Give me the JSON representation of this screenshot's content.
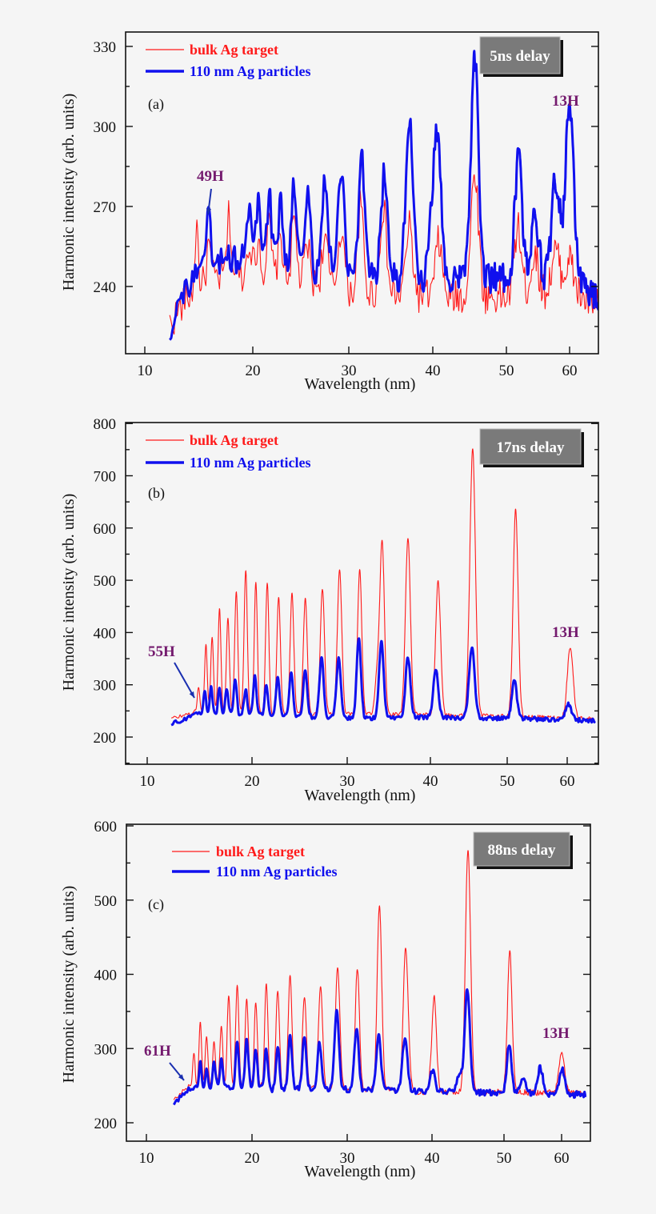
{
  "chart_data": [
    {
      "type": "line",
      "panel_label": "(a)",
      "delay_box": "5ns delay",
      "xlabel": "Wavelength (nm)",
      "ylabel": "Harmonic intensity (arb. units)",
      "xticks": [
        10,
        20,
        30,
        40,
        50,
        60
      ],
      "yticks": [
        240,
        270,
        300,
        330
      ],
      "xlim": [
        8,
        64.6
      ],
      "ylim": [
        215,
        335
      ],
      "x_scale": "nonlinear (spectrometer calibration)",
      "grid": false,
      "legend": "top-left",
      "annotations": [
        {
          "text": "49H",
          "arrow": true
        },
        {
          "text": "13H",
          "arrow": false
        }
      ],
      "series": [
        {
          "name": "bulk Ag target",
          "color": "#ff1a1a",
          "baseline": [
            [
              12.3,
              226
            ],
            [
              14,
              236
            ],
            [
              16,
              243
            ],
            [
              20,
              245
            ],
            [
              30,
              238
            ],
            [
              40,
              236
            ],
            [
              50,
              236
            ],
            [
              60,
              238
            ],
            [
              64.6,
              232
            ]
          ],
          "peaks": [
            [
              14.8,
              262
            ],
            [
              15.9,
              255
            ],
            [
              17.8,
              266
            ],
            [
              19.7,
              258
            ],
            [
              20.6,
              258
            ],
            [
              21.7,
              262
            ],
            [
              22.9,
              258
            ],
            [
              24.3,
              264
            ],
            [
              25.7,
              255
            ],
            [
              27.5,
              258
            ],
            [
              29.2,
              262
            ],
            [
              31.4,
              270
            ],
            [
              34.1,
              270
            ],
            [
              37.2,
              262
            ],
            [
              40.8,
              257
            ],
            [
              45.7,
              283
            ],
            [
              51.8,
              262
            ],
            [
              54.5,
              252
            ],
            [
              57.8,
              253
            ],
            [
              60.0,
              250
            ]
          ]
        },
        {
          "name": "110 nm Ag particles",
          "color": "#1010ee",
          "baseline": [
            [
              12.3,
              222
            ],
            [
              12.8,
              232
            ],
            [
              14,
              240
            ],
            [
              16,
              250
            ],
            [
              20,
              250
            ],
            [
              30,
              244
            ],
            [
              40,
              243
            ],
            [
              50,
              243
            ],
            [
              60,
              243
            ],
            [
              64.6,
              236
            ]
          ],
          "peaks": [
            [
              15.9,
              265
            ],
            [
              19.7,
              271
            ],
            [
              20.6,
              274
            ],
            [
              21.7,
              274
            ],
            [
              22.9,
              271
            ],
            [
              24.3,
              277
            ],
            [
              25.7,
              274
            ],
            [
              27.5,
              280
            ],
            [
              29.2,
              286
            ],
            [
              31.5,
              288
            ],
            [
              34.2,
              281
            ],
            [
              37.2,
              305
            ],
            [
              40.1,
              273
            ],
            [
              40.8,
              284
            ],
            [
              45.7,
              326
            ],
            [
              51.9,
              288
            ],
            [
              54.5,
              268
            ],
            [
              57.8,
              280
            ],
            [
              60.0,
              307
            ]
          ]
        }
      ]
    },
    {
      "type": "line",
      "panel_label": "(b)",
      "delay_box": "17ns delay",
      "xlabel": "Wavelength (nm)",
      "ylabel": "Harmonic intensity (arb. units)",
      "xticks": [
        10,
        20,
        30,
        40,
        50,
        60
      ],
      "yticks": [
        200,
        300,
        400,
        500,
        600,
        700,
        800
      ],
      "xlim": [
        8,
        64.6
      ],
      "ylim": [
        149,
        801
      ],
      "x_scale": "nonlinear (spectrometer calibration)",
      "grid": false,
      "legend": "top-left",
      "annotations": [
        {
          "text": "55H",
          "arrow": true
        },
        {
          "text": "13H",
          "arrow": false
        }
      ],
      "series": [
        {
          "name": "bulk Ag target",
          "color": "#ff1a1a",
          "baseline": [
            [
              12.3,
              235
            ],
            [
              15,
              250
            ],
            [
              20,
              245
            ],
            [
              40,
              242
            ],
            [
              64.6,
              235
            ]
          ],
          "peaks": [
            [
              14.9,
              294
            ],
            [
              15.6,
              377
            ],
            [
              16.2,
              391
            ],
            [
              16.9,
              445
            ],
            [
              17.7,
              428
            ],
            [
              18.5,
              480
            ],
            [
              19.4,
              515
            ],
            [
              20.4,
              493
            ],
            [
              21.6,
              495
            ],
            [
              22.8,
              471
            ],
            [
              24.2,
              474
            ],
            [
              25.6,
              469
            ],
            [
              27.4,
              486
            ],
            [
              29.2,
              521
            ],
            [
              31.5,
              521
            ],
            [
              33.6,
              320
            ],
            [
              34.2,
              572
            ],
            [
              37.3,
              578
            ],
            [
              41.0,
              498
            ],
            [
              45.5,
              750
            ],
            [
              51.4,
              636
            ],
            [
              60.5,
              372
            ]
          ]
        },
        {
          "name": "110 nm Ag particles",
          "color": "#1010ee",
          "baseline": [
            [
              12.3,
              225
            ],
            [
              15,
              245
            ],
            [
              18,
              243
            ],
            [
              30,
              236
            ],
            [
              40,
              238
            ],
            [
              64.6,
              232
            ]
          ],
          "peaks": [
            [
              15.5,
              291
            ],
            [
              16.1,
              299
            ],
            [
              16.9,
              294
            ],
            [
              17.6,
              292
            ],
            [
              18.4,
              308
            ],
            [
              19.4,
              288
            ],
            [
              20.3,
              318
            ],
            [
              21.5,
              297
            ],
            [
              22.7,
              317
            ],
            [
              24.1,
              323
            ],
            [
              25.6,
              328
            ],
            [
              27.3,
              352
            ],
            [
              29.1,
              350
            ],
            [
              31.4,
              392
            ],
            [
              34.1,
              382
            ],
            [
              37.3,
              351
            ],
            [
              40.7,
              328
            ],
            [
              45.4,
              369
            ],
            [
              51.2,
              307
            ],
            [
              60.2,
              263
            ]
          ]
        }
      ]
    },
    {
      "type": "line",
      "panel_label": "(c)",
      "delay_box": "88ns delay",
      "xlabel": "Wavelength (nm)",
      "ylabel": "Harmonic intensity (arb. units)",
      "xticks": [
        10,
        20,
        30,
        40,
        50,
        60
      ],
      "yticks": [
        200,
        300,
        400,
        500,
        600
      ],
      "xlim": [
        8,
        64.2
      ],
      "ylim": [
        175,
        602
      ],
      "x_scale": "nonlinear (spectrometer calibration)",
      "grid": false,
      "legend": "top-left",
      "annotations": [
        {
          "text": "61H",
          "arrow": true
        },
        {
          "text": "13H",
          "arrow": false
        }
      ],
      "series": [
        {
          "name": "bulk Ag target",
          "color": "#ff1a1a",
          "baseline": [
            [
              12.6,
              230
            ],
            [
              14,
              250
            ],
            [
              20,
              248
            ],
            [
              40,
              242
            ],
            [
              64.2,
              240
            ]
          ],
          "peaks": [
            [
              14.5,
              291
            ],
            [
              15.1,
              332
            ],
            [
              15.7,
              313
            ],
            [
              16.4,
              306
            ],
            [
              17.1,
              326
            ],
            [
              17.8,
              374
            ],
            [
              18.6,
              385
            ],
            [
              19.5,
              369
            ],
            [
              20.4,
              363
            ],
            [
              21.5,
              385
            ],
            [
              22.7,
              381
            ],
            [
              24.0,
              398
            ],
            [
              25.5,
              370
            ],
            [
              27.2,
              384
            ],
            [
              29.0,
              410
            ],
            [
              31.2,
              409
            ],
            [
              33.8,
              491
            ],
            [
              36.9,
              437
            ],
            [
              40.3,
              369
            ],
            [
              45.0,
              569
            ],
            [
              51.0,
              430
            ],
            [
              60.0,
              297
            ]
          ]
        },
        {
          "name": "110 nm Ag particles",
          "color": "#1010ee",
          "baseline": [
            [
              12.6,
              227
            ],
            [
              14,
              245
            ],
            [
              17,
              250
            ],
            [
              22,
              245
            ],
            [
              30,
              245
            ],
            [
              40,
              242
            ],
            [
              64.2,
              238
            ]
          ],
          "peaks": [
            [
              15.1,
              281
            ],
            [
              15.7,
              270
            ],
            [
              16.4,
              281
            ],
            [
              17.1,
              283
            ],
            [
              18.6,
              309
            ],
            [
              19.5,
              312
            ],
            [
              20.4,
              300
            ],
            [
              21.5,
              301
            ],
            [
              22.7,
              300
            ],
            [
              24.0,
              320
            ],
            [
              25.5,
              317
            ],
            [
              27.1,
              308
            ],
            [
              28.9,
              355
            ],
            [
              31.1,
              327
            ],
            [
              33.7,
              320
            ],
            [
              36.8,
              313
            ],
            [
              40.1,
              270
            ],
            [
              43.8,
              265
            ],
            [
              44.9,
              379
            ],
            [
              50.9,
              306
            ],
            [
              53.3,
              259
            ],
            [
              56.3,
              274
            ],
            [
              60.1,
              272
            ]
          ]
        }
      ]
    }
  ]
}
